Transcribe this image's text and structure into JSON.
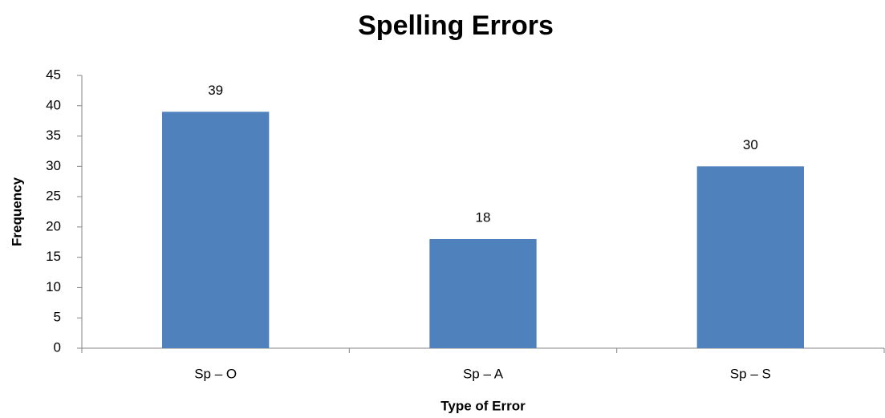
{
  "chart_data": {
    "type": "bar",
    "title": "Spelling Errors",
    "x_label": "Type of Error",
    "y_label": "Frequency",
    "categories": [
      "Sp – O",
      "Sp – A",
      "Sp – S"
    ],
    "values": [
      39,
      18,
      30
    ],
    "color": "#4f81bd",
    "ylim": [
      0,
      45
    ],
    "yticks": [
      0,
      5,
      10,
      15,
      20,
      25,
      30,
      35,
      40,
      45
    ],
    "grid": false
  }
}
